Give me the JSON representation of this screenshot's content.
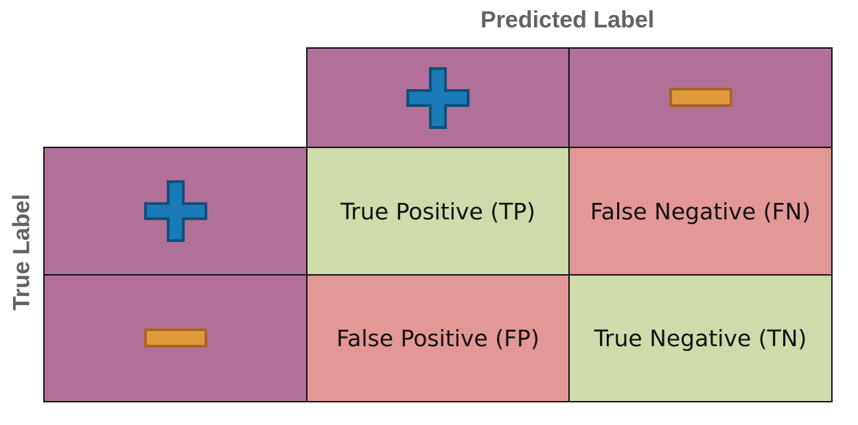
{
  "axes": {
    "predicted_title": "Predicted Label",
    "true_title": "True Label"
  },
  "headers": {
    "predicted": [
      {
        "symbol": "plus-icon",
        "color": "#1a7ab5"
      },
      {
        "symbol": "minus-icon",
        "color": "#e09a3c"
      }
    ],
    "true": [
      {
        "symbol": "plus-icon",
        "color": "#1a7ab5"
      },
      {
        "symbol": "minus-icon",
        "color": "#e09a3c"
      }
    ]
  },
  "cells": {
    "tp": {
      "label": "True Positive (TP)",
      "color": "#cddcaa"
    },
    "fn": {
      "label": "False Negative (FN)",
      "color": "#e39896"
    },
    "fp": {
      "label": "False Positive (FP)",
      "color": "#e39896"
    },
    "tn": {
      "label": "True Negative (TN)",
      "color": "#cddcaa"
    }
  },
  "colors": {
    "header": "#b07098",
    "border": "#111111",
    "plus_fill": "#1a7ab5",
    "plus_stroke": "#0e4f7c",
    "minus_fill": "#e09a3c",
    "minus_stroke": "#a7652a",
    "axis_title": "#636363"
  }
}
